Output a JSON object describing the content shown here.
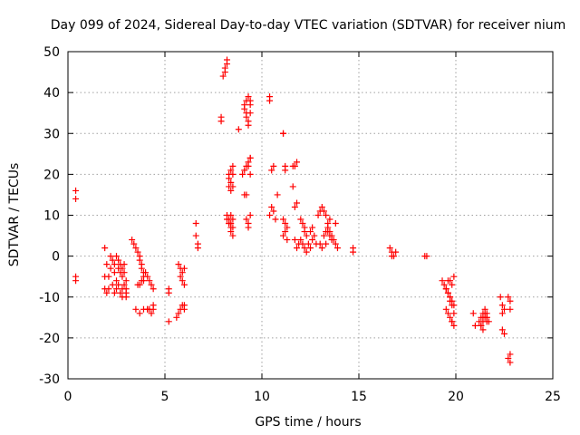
{
  "chart_data": {
    "type": "scatter",
    "title": "Day 099 of 2024, Sidereal Day-to-day VTEC variation (SDTVAR) for receiver nium",
    "xlabel": "GPS time / hours",
    "ylabel": "SDTVAR / TECUs",
    "xlim": [
      0,
      25
    ],
    "ylim": [
      -30,
      50
    ],
    "xticks": [
      0,
      5,
      10,
      15,
      20,
      25
    ],
    "yticks": [
      -30,
      -20,
      -10,
      0,
      10,
      20,
      30,
      40,
      50
    ],
    "grid": true,
    "marker": "+",
    "color": "#ff0000",
    "series": [
      {
        "name": "SDTVAR",
        "x": [
          0.4,
          0.4,
          0.4,
          0.4,
          1.9,
          1.9,
          1.9,
          2.0,
          2.0,
          2.1,
          2.1,
          2.2,
          2.2,
          2.3,
          2.3,
          2.4,
          2.4,
          2.4,
          2.5,
          2.5,
          2.5,
          2.6,
          2.6,
          2.6,
          2.7,
          2.7,
          2.7,
          2.8,
          2.8,
          2.8,
          2.8,
          2.9,
          2.9,
          2.9,
          3.0,
          3.0,
          3.0,
          3.0,
          3.3,
          3.4,
          3.5,
          3.6,
          3.7,
          3.7,
          3.8,
          3.8,
          3.9,
          3.9,
          3.6,
          3.7,
          3.8,
          3.9,
          4.0,
          4.1,
          4.2,
          4.3,
          4.4,
          4.1,
          4.2,
          4.3,
          4.4,
          4.4,
          3.5,
          3.7,
          3.9,
          4.1,
          5.2,
          5.2,
          5.2,
          5.7,
          5.8,
          5.8,
          5.9,
          5.9,
          6.0,
          6.0,
          5.6,
          5.7,
          5.8,
          5.9,
          6.0,
          6.0,
          6.6,
          6.6,
          6.7,
          6.7,
          7.9,
          7.9,
          8.0,
          8.1,
          8.1,
          8.2,
          8.2,
          8.3,
          8.3,
          8.3,
          8.4,
          8.4,
          8.4,
          8.5,
          8.5,
          8.5,
          8.2,
          8.3,
          8.3,
          8.4,
          8.4,
          8.4,
          8.5,
          8.5,
          8.2,
          8.3,
          8.4,
          8.5,
          8.8,
          9.0,
          9.1,
          9.1,
          9.2,
          9.2,
          9.2,
          9.3,
          9.3,
          9.3,
          9.4,
          9.4,
          9.4,
          9.1,
          9.2,
          9.3,
          9.4,
          9.4,
          9.1,
          9.2,
          9.3,
          9.4,
          9.3,
          9.2,
          9.3,
          9.4,
          10.4,
          10.4,
          10.5,
          10.6,
          10.5,
          10.6,
          10.8,
          10.4,
          10.7,
          11.1,
          11.1,
          11.2,
          11.2,
          11.1,
          11.2,
          11.3,
          11.1,
          11.2,
          11.3,
          11.6,
          11.6,
          11.7,
          11.8,
          11.7,
          11.8,
          11.9,
          11.7,
          11.8,
          12.0,
          12.1,
          12.2,
          12.2,
          12.3,
          12.0,
          12.1,
          12.2,
          12.3,
          12.4,
          12.5,
          12.6,
          12.7,
          12.8,
          12.5,
          12.6,
          12.9,
          13.0,
          13.1,
          13.2,
          13.3,
          13.4,
          13.5,
          13.6,
          13.0,
          13.1,
          13.2,
          13.3,
          13.4,
          13.5,
          13.6,
          13.3,
          13.4,
          13.5,
          13.7,
          13.8,
          13.9,
          13.8,
          14.7,
          14.7,
          16.6,
          16.7,
          16.8,
          16.9,
          16.7,
          18.4,
          18.5,
          19.3,
          19.4,
          19.5,
          19.6,
          19.7,
          19.8,
          19.5,
          19.6,
          19.7,
          19.8,
          19.9,
          19.6,
          19.7,
          19.8,
          19.9,
          19.8,
          19.9,
          19.7,
          19.8,
          19.9,
          19.5,
          19.6,
          19.7,
          20.9,
          21.0,
          21.2,
          21.3,
          21.4,
          21.5,
          21.6,
          21.7,
          21.3,
          21.4,
          21.5,
          21.6,
          21.3,
          21.4,
          21.5,
          21.6,
          21.4,
          21.6,
          22.3,
          22.4,
          22.5,
          22.4,
          22.5,
          22.4,
          22.7,
          22.8,
          22.8,
          22.8,
          22.7,
          22.8
        ],
        "y": [
          16,
          14,
          -5,
          -6,
          2,
          -5,
          -8,
          -2,
          -9,
          -5,
          -8,
          -3,
          0,
          -1,
          -7,
          -2,
          -9,
          -4,
          0,
          -6,
          -8,
          -1,
          -3,
          -7,
          -2,
          -4,
          -9,
          -3,
          -5,
          -8,
          -10,
          -2,
          -4,
          -7,
          -6,
          -8,
          -9,
          -10,
          4,
          3,
          2,
          1,
          0,
          -1,
          -2,
          -3,
          -4,
          -5,
          -7,
          -7,
          -6,
          -6,
          -4,
          -5,
          -6,
          -7,
          -8,
          -13,
          -13,
          -14,
          -13,
          -12,
          -13,
          -14,
          -13,
          -13,
          -8,
          -9,
          -16,
          -2,
          -3,
          -5,
          -4,
          -6,
          -3,
          -7,
          -15,
          -14,
          -13,
          -12,
          -12,
          -13,
          8,
          5,
          3,
          2,
          34,
          33,
          44,
          45,
          46,
          47,
          48,
          20,
          19,
          17,
          18,
          21,
          16,
          20,
          17,
          22,
          10,
          9,
          8,
          7,
          10,
          8,
          9,
          7,
          9,
          8,
          6,
          5,
          31,
          20,
          36,
          37,
          35,
          38,
          34,
          39,
          32,
          33,
          37,
          38,
          35,
          15,
          15,
          22,
          24,
          20,
          21,
          22,
          23,
          24,
          8,
          9,
          7,
          10,
          39,
          38,
          21,
          22,
          12,
          11,
          15,
          10,
          9,
          30,
          30,
          22,
          21,
          9,
          8,
          7,
          5,
          6,
          4,
          22,
          17,
          22,
          23,
          12,
          13,
          3,
          4,
          2,
          9,
          8,
          7,
          6,
          5,
          4,
          3,
          2,
          1,
          3,
          2,
          4,
          5,
          3,
          6,
          7,
          10,
          11,
          12,
          11,
          10,
          6,
          5,
          4,
          3,
          2,
          5,
          6,
          7,
          6,
          5,
          3,
          8,
          9,
          4,
          3,
          2,
          8,
          2,
          1,
          2,
          1,
          0,
          1,
          0,
          0,
          0,
          -6,
          -7,
          -8,
          -9,
          -10,
          -12,
          -13,
          -14,
          -15,
          -16,
          -14,
          -9,
          -10,
          -11,
          -12,
          -16,
          -17,
          -6,
          -7,
          -5,
          -8,
          -6,
          -11,
          -14,
          -17,
          -16,
          -15,
          -14,
          -13,
          -15,
          -16,
          -17,
          -18,
          -14,
          -15,
          -17,
          -16,
          -15,
          -14,
          -15,
          -16,
          -10,
          -12,
          -13,
          -18,
          -19,
          -14,
          -10,
          -11,
          -13,
          -24,
          -25,
          -26
        ]
      }
    ]
  }
}
